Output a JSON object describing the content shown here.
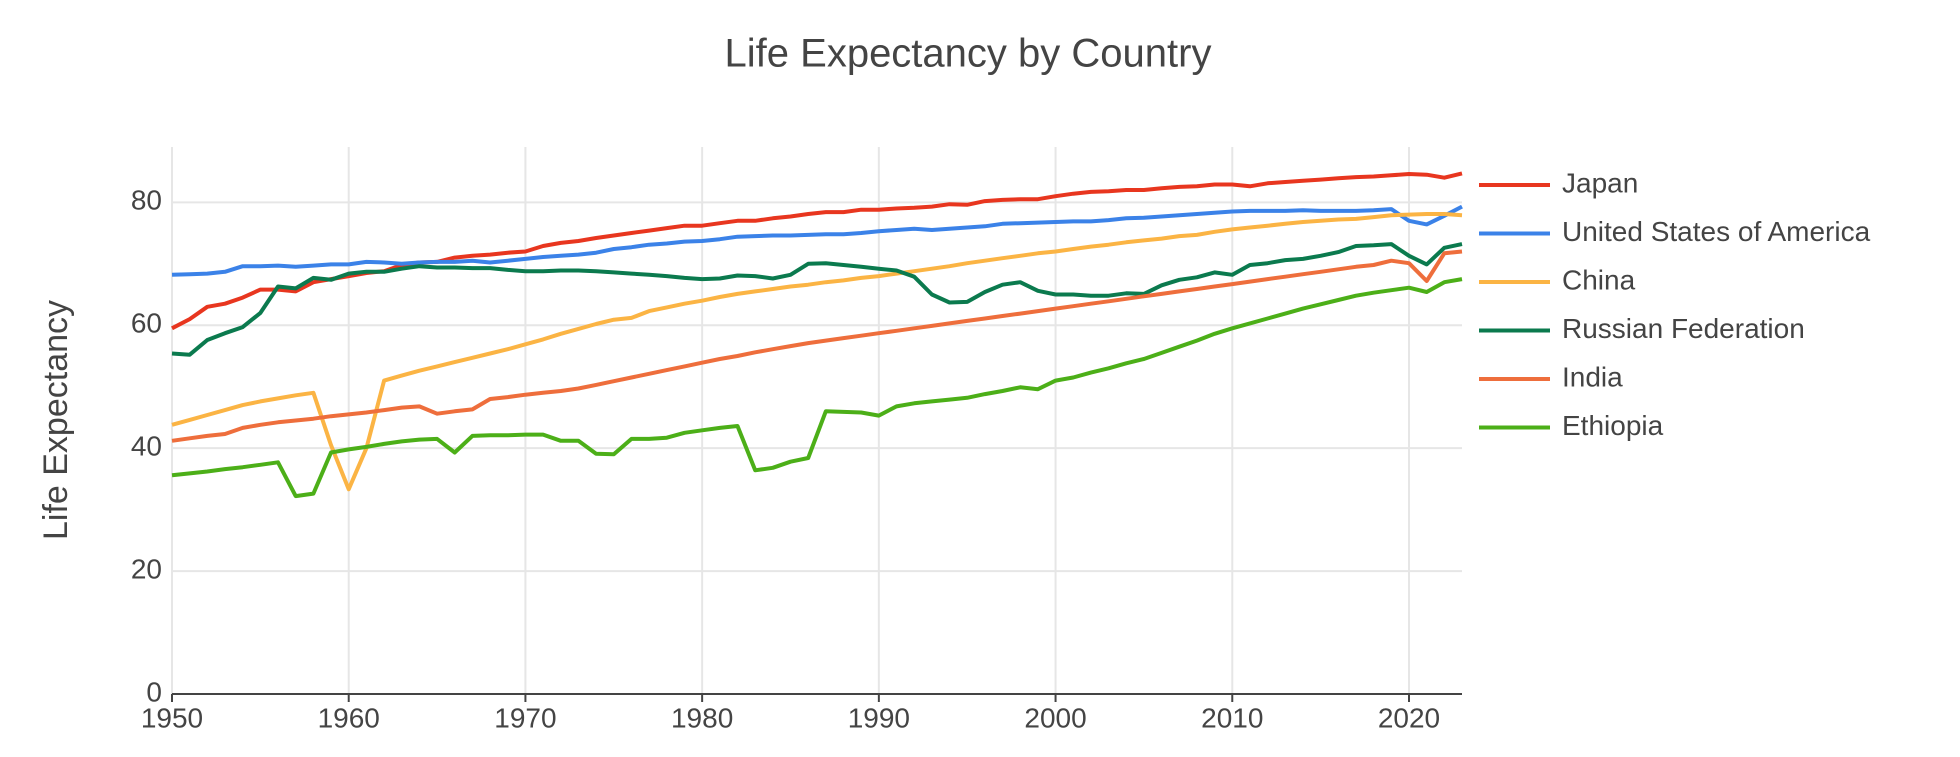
{
  "chart_data": {
    "type": "line",
    "title": "Life Expectancy by Country",
    "y_label": "Life Expectancy",
    "x": [
      1950,
      1951,
      1952,
      1953,
      1954,
      1955,
      1956,
      1957,
      1958,
      1959,
      1960,
      1961,
      1962,
      1963,
      1964,
      1965,
      1966,
      1967,
      1968,
      1969,
      1970,
      1971,
      1972,
      1973,
      1974,
      1975,
      1976,
      1977,
      1978,
      1979,
      1980,
      1981,
      1982,
      1983,
      1984,
      1985,
      1986,
      1987,
      1988,
      1989,
      1990,
      1991,
      1992,
      1993,
      1994,
      1995,
      1996,
      1997,
      1998,
      1999,
      2000,
      2001,
      2002,
      2003,
      2004,
      2005,
      2006,
      2007,
      2008,
      2009,
      2010,
      2011,
      2012,
      2013,
      2014,
      2015,
      2016,
      2017,
      2018,
      2019,
      2020,
      2021,
      2022,
      2023
    ],
    "series": [
      {
        "name": "Japan",
        "color": "#e8361f",
        "values": [
          59.5,
          61,
          63,
          63.5,
          64.5,
          65.8,
          65.8,
          65.5,
          67,
          67.5,
          68,
          68.5,
          68.8,
          69.8,
          70.2,
          70.3,
          71,
          71.3,
          71.5,
          71.8,
          72,
          72.9,
          73.4,
          73.7,
          74.2,
          74.6,
          75,
          75.4,
          75.8,
          76.2,
          76.2,
          76.6,
          77,
          77,
          77.4,
          77.7,
          78.1,
          78.4,
          78.4,
          78.8,
          78.8,
          79,
          79.1,
          79.3,
          79.7,
          79.6,
          80.2,
          80.4,
          80.5,
          80.5,
          81,
          81.4,
          81.7,
          81.8,
          82,
          82,
          82.3,
          82.5,
          82.6,
          82.9,
          82.9,
          82.6,
          83.1,
          83.3,
          83.5,
          83.7,
          83.9,
          84.1,
          84.2,
          84.4,
          84.6,
          84.5,
          84,
          84.7
        ]
      },
      {
        "name": "United States of America",
        "color": "#3b82e8",
        "values": [
          68.2,
          68.3,
          68.4,
          68.7,
          69.6,
          69.6,
          69.7,
          69.5,
          69.7,
          69.9,
          69.9,
          70.3,
          70.2,
          70,
          70.2,
          70.3,
          70.3,
          70.5,
          70.2,
          70.5,
          70.8,
          71.1,
          71.3,
          71.5,
          71.8,
          72.4,
          72.7,
          73.1,
          73.3,
          73.6,
          73.7,
          74,
          74.4,
          74.5,
          74.6,
          74.6,
          74.7,
          74.8,
          74.8,
          75,
          75.3,
          75.5,
          75.7,
          75.5,
          75.7,
          75.9,
          76.1,
          76.5,
          76.6,
          76.7,
          76.8,
          76.9,
          76.9,
          77.1,
          77.4,
          77.5,
          77.7,
          77.9,
          78.1,
          78.3,
          78.5,
          78.6,
          78.6,
          78.6,
          78.7,
          78.6,
          78.6,
          78.6,
          78.7,
          78.9,
          77,
          76.4,
          77.8,
          79.3
        ]
      },
      {
        "name": "China",
        "color": "#fbb444",
        "values": [
          43.8,
          44.6,
          45.4,
          46.2,
          47,
          47.6,
          48.1,
          48.6,
          49,
          40.5,
          33.3,
          40,
          51,
          51.8,
          52.6,
          53.3,
          54,
          54.7,
          55.4,
          56.1,
          56.9,
          57.7,
          58.6,
          59.4,
          60.2,
          60.9,
          61.2,
          62.3,
          62.9,
          63.5,
          64,
          64.6,
          65.1,
          65.5,
          65.9,
          66.3,
          66.6,
          67,
          67.3,
          67.7,
          68,
          68.4,
          68.8,
          69.2,
          69.6,
          70.1,
          70.5,
          70.9,
          71.3,
          71.7,
          72,
          72.4,
          72.8,
          73.1,
          73.5,
          73.8,
          74.1,
          74.5,
          74.7,
          75.2,
          75.6,
          75.9,
          76.2,
          76.5,
          76.8,
          77,
          77.2,
          77.3,
          77.6,
          77.9,
          78,
          78.1,
          78.1,
          77.9
        ]
      },
      {
        "name": "Russian Federation",
        "color": "#0b7a4e",
        "values": [
          55.4,
          55.2,
          57.6,
          58.7,
          59.7,
          62,
          66.3,
          66,
          67.7,
          67.4,
          68.4,
          68.7,
          68.7,
          69.2,
          69.6,
          69.4,
          69.4,
          69.3,
          69.3,
          69,
          68.8,
          68.8,
          68.9,
          68.9,
          68.8,
          68.6,
          68.4,
          68.2,
          68,
          67.7,
          67.5,
          67.6,
          68.1,
          68,
          67.6,
          68.2,
          70,
          70.1,
          69.8,
          69.5,
          69.2,
          68.9,
          67.9,
          65,
          63.7,
          63.8,
          65.4,
          66.6,
          67,
          65.6,
          65,
          65,
          64.8,
          64.8,
          65.2,
          65.1,
          66.5,
          67.4,
          67.8,
          68.6,
          68.2,
          69.8,
          70.1,
          70.6,
          70.8,
          71.3,
          71.9,
          72.9,
          73,
          73.2,
          71.3,
          69.9,
          72.6,
          73.2
        ]
      },
      {
        "name": "India",
        "color": "#ee6e3c",
        "values": [
          41.2,
          41.6,
          42,
          42.3,
          43.3,
          43.8,
          44.2,
          44.5,
          44.8,
          45.2,
          45.5,
          45.8,
          46.2,
          46.6,
          46.8,
          45.6,
          46,
          46.3,
          48,
          48.3,
          48.7,
          49,
          49.3,
          49.7,
          50.3,
          50.9,
          51.5,
          52.1,
          52.7,
          53.3,
          53.9,
          54.5,
          55,
          55.6,
          56.1,
          56.6,
          57.1,
          57.5,
          57.9,
          58.3,
          58.7,
          59.1,
          59.5,
          59.9,
          60.3,
          60.7,
          61.1,
          61.5,
          61.9,
          62.3,
          62.7,
          63.1,
          63.5,
          63.9,
          64.3,
          64.7,
          65.1,
          65.5,
          65.9,
          66.3,
          66.7,
          67.1,
          67.5,
          67.9,
          68.3,
          68.7,
          69.1,
          69.5,
          69.8,
          70.5,
          70.1,
          67.2,
          71.7,
          72
        ]
      },
      {
        "name": "Ethiopia",
        "color": "#4caf18",
        "values": [
          35.6,
          35.9,
          36.2,
          36.6,
          36.9,
          37.3,
          37.7,
          32.2,
          32.6,
          39.3,
          39.8,
          40.2,
          40.7,
          41.1,
          41.4,
          41.5,
          39.3,
          42,
          42.1,
          42.1,
          42.2,
          42.2,
          41.2,
          41.2,
          39.1,
          39,
          41.5,
          41.5,
          41.7,
          42.5,
          42.9,
          43.3,
          43.6,
          36.4,
          36.8,
          37.8,
          38.4,
          46,
          45.9,
          45.8,
          45.3,
          46.8,
          47.3,
          47.6,
          47.9,
          48.2,
          48.8,
          49.3,
          49.9,
          49.6,
          51,
          51.5,
          52.3,
          53,
          53.8,
          54.5,
          55.5,
          56.5,
          57.5,
          58.6,
          59.5,
          60.3,
          61.1,
          61.9,
          62.7,
          63.4,
          64.1,
          64.8,
          65.3,
          65.7,
          66.1,
          65.4,
          67,
          67.5
        ]
      }
    ],
    "xlim": [
      1950,
      2023
    ],
    "xticks": [
      1950,
      1960,
      1970,
      1980,
      1990,
      2000,
      2010,
      2020
    ],
    "ylim": [
      0,
      89
    ],
    "yticks": [
      0,
      20,
      40,
      60,
      80
    ],
    "grid": true,
    "legend": "right"
  }
}
